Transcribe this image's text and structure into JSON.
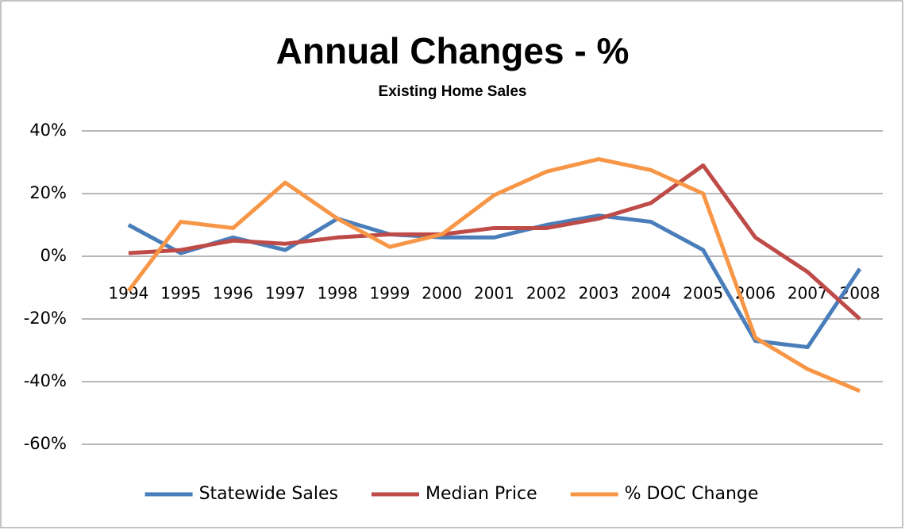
{
  "chart_data": {
    "type": "line",
    "title": "Annual Changes - %",
    "subtitle": "Existing Home Sales",
    "categories": [
      "1994",
      "1995",
      "1996",
      "1997",
      "1998",
      "1999",
      "2000",
      "2001",
      "2002",
      "2003",
      "2004",
      "2005",
      "2006",
      "2007",
      "2008"
    ],
    "series": [
      {
        "name": "Statewide Sales",
        "color": "#4a7ebb",
        "values": [
          10,
          1,
          6,
          2,
          12,
          7,
          6,
          6,
          10,
          13,
          11,
          2,
          -27,
          -29,
          -4
        ]
      },
      {
        "name": "Median Price",
        "color": "#be4b48",
        "values": [
          1,
          2,
          5,
          4,
          6,
          7,
          7,
          9,
          9,
          12,
          17,
          29,
          6,
          -5,
          -20
        ]
      },
      {
        "name": "% DOC Change",
        "color": "#f79646",
        "values": [
          -11,
          11,
          9,
          23.5,
          12,
          3,
          7,
          19.5,
          27,
          31,
          27.5,
          20,
          -26,
          -36,
          -43
        ]
      }
    ],
    "ylim": [
      -60,
      40
    ],
    "yticks": [
      {
        "value": -60,
        "label": "-60%"
      },
      {
        "value": -40,
        "label": "-40%"
      },
      {
        "value": -20,
        "label": "-20%"
      },
      {
        "value": 0,
        "label": "0%"
      },
      {
        "value": 20,
        "label": "20%"
      },
      {
        "value": 40,
        "label": "40%"
      }
    ],
    "grid": true,
    "legend": "bottom"
  }
}
